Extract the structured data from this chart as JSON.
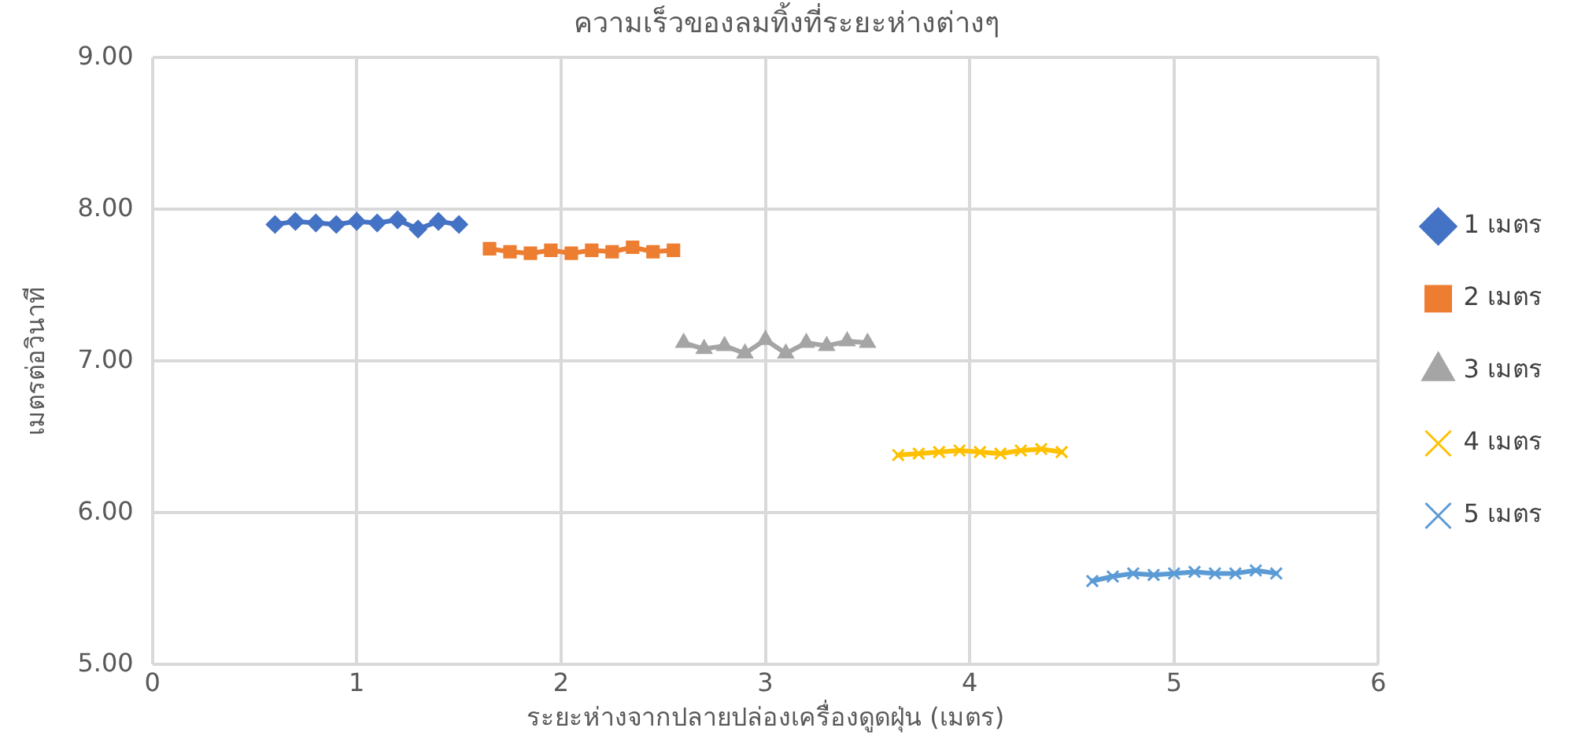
{
  "chart_data": {
    "type": "line",
    "title": "ความเร็วของลมทิ้งที่ระยะห่างต่างๆ",
    "xlabel": "ระยะห่างจากปลายปล่องเครื่องดูดฝุ่น (เมตร)",
    "ylabel": "เมตรต่อวินาที",
    "xlim": [
      0,
      6
    ],
    "xticks": [
      0,
      1,
      2,
      3,
      4,
      5,
      6
    ],
    "ylim": [
      5,
      9
    ],
    "yticks": [
      {
        "value": 5,
        "label": "5.00"
      },
      {
        "value": 6,
        "label": "6.00"
      },
      {
        "value": 7,
        "label": "7.00"
      },
      {
        "value": 8,
        "label": "8.00"
      },
      {
        "value": 9,
        "label": "9.00"
      }
    ],
    "grid": true,
    "legend": "right",
    "line_style": "solid",
    "series": [
      {
        "name": "1 เมตร",
        "color": "#4472c4",
        "marker": "diamond",
        "x": [
          0.6,
          0.7,
          0.8,
          0.9,
          1.0,
          1.1,
          1.2,
          1.3,
          1.4,
          1.5
        ],
        "values": [
          7.9,
          7.92,
          7.91,
          7.9,
          7.92,
          7.91,
          7.93,
          7.87,
          7.92,
          7.9
        ]
      },
      {
        "name": "2 เมตร",
        "color": "#ed7d31",
        "marker": "square",
        "x": [
          1.65,
          1.75,
          1.85,
          1.95,
          2.05,
          2.15,
          2.25,
          2.35,
          2.45,
          2.55
        ],
        "values": [
          7.74,
          7.72,
          7.71,
          7.73,
          7.71,
          7.73,
          7.72,
          7.75,
          7.72,
          7.73
        ]
      },
      {
        "name": "3 เมตร",
        "color": "#a5a5a5",
        "marker": "triangle",
        "x": [
          2.6,
          2.7,
          2.8,
          2.9,
          3.0,
          3.1,
          3.2,
          3.3,
          3.4,
          3.5
        ],
        "values": [
          7.12,
          7.08,
          7.1,
          7.05,
          7.14,
          7.05,
          7.12,
          7.1,
          7.13,
          7.12
        ]
      },
      {
        "name": "4 เมตร",
        "color": "#ffc000",
        "marker": "cross",
        "x": [
          3.65,
          3.75,
          3.85,
          3.95,
          4.05,
          4.15,
          4.25,
          4.35,
          4.45
        ],
        "values": [
          6.38,
          6.39,
          6.4,
          6.41,
          6.4,
          6.39,
          6.41,
          6.42,
          6.4
        ]
      },
      {
        "name": "5 เมตร",
        "color": "#5b9bd5",
        "marker": "cross",
        "x": [
          4.6,
          4.7,
          4.8,
          4.9,
          5.0,
          5.1,
          5.2,
          5.3,
          5.4,
          5.5
        ],
        "values": [
          5.55,
          5.58,
          5.6,
          5.59,
          5.6,
          5.61,
          5.6,
          5.6,
          5.62,
          5.6
        ]
      }
    ]
  }
}
